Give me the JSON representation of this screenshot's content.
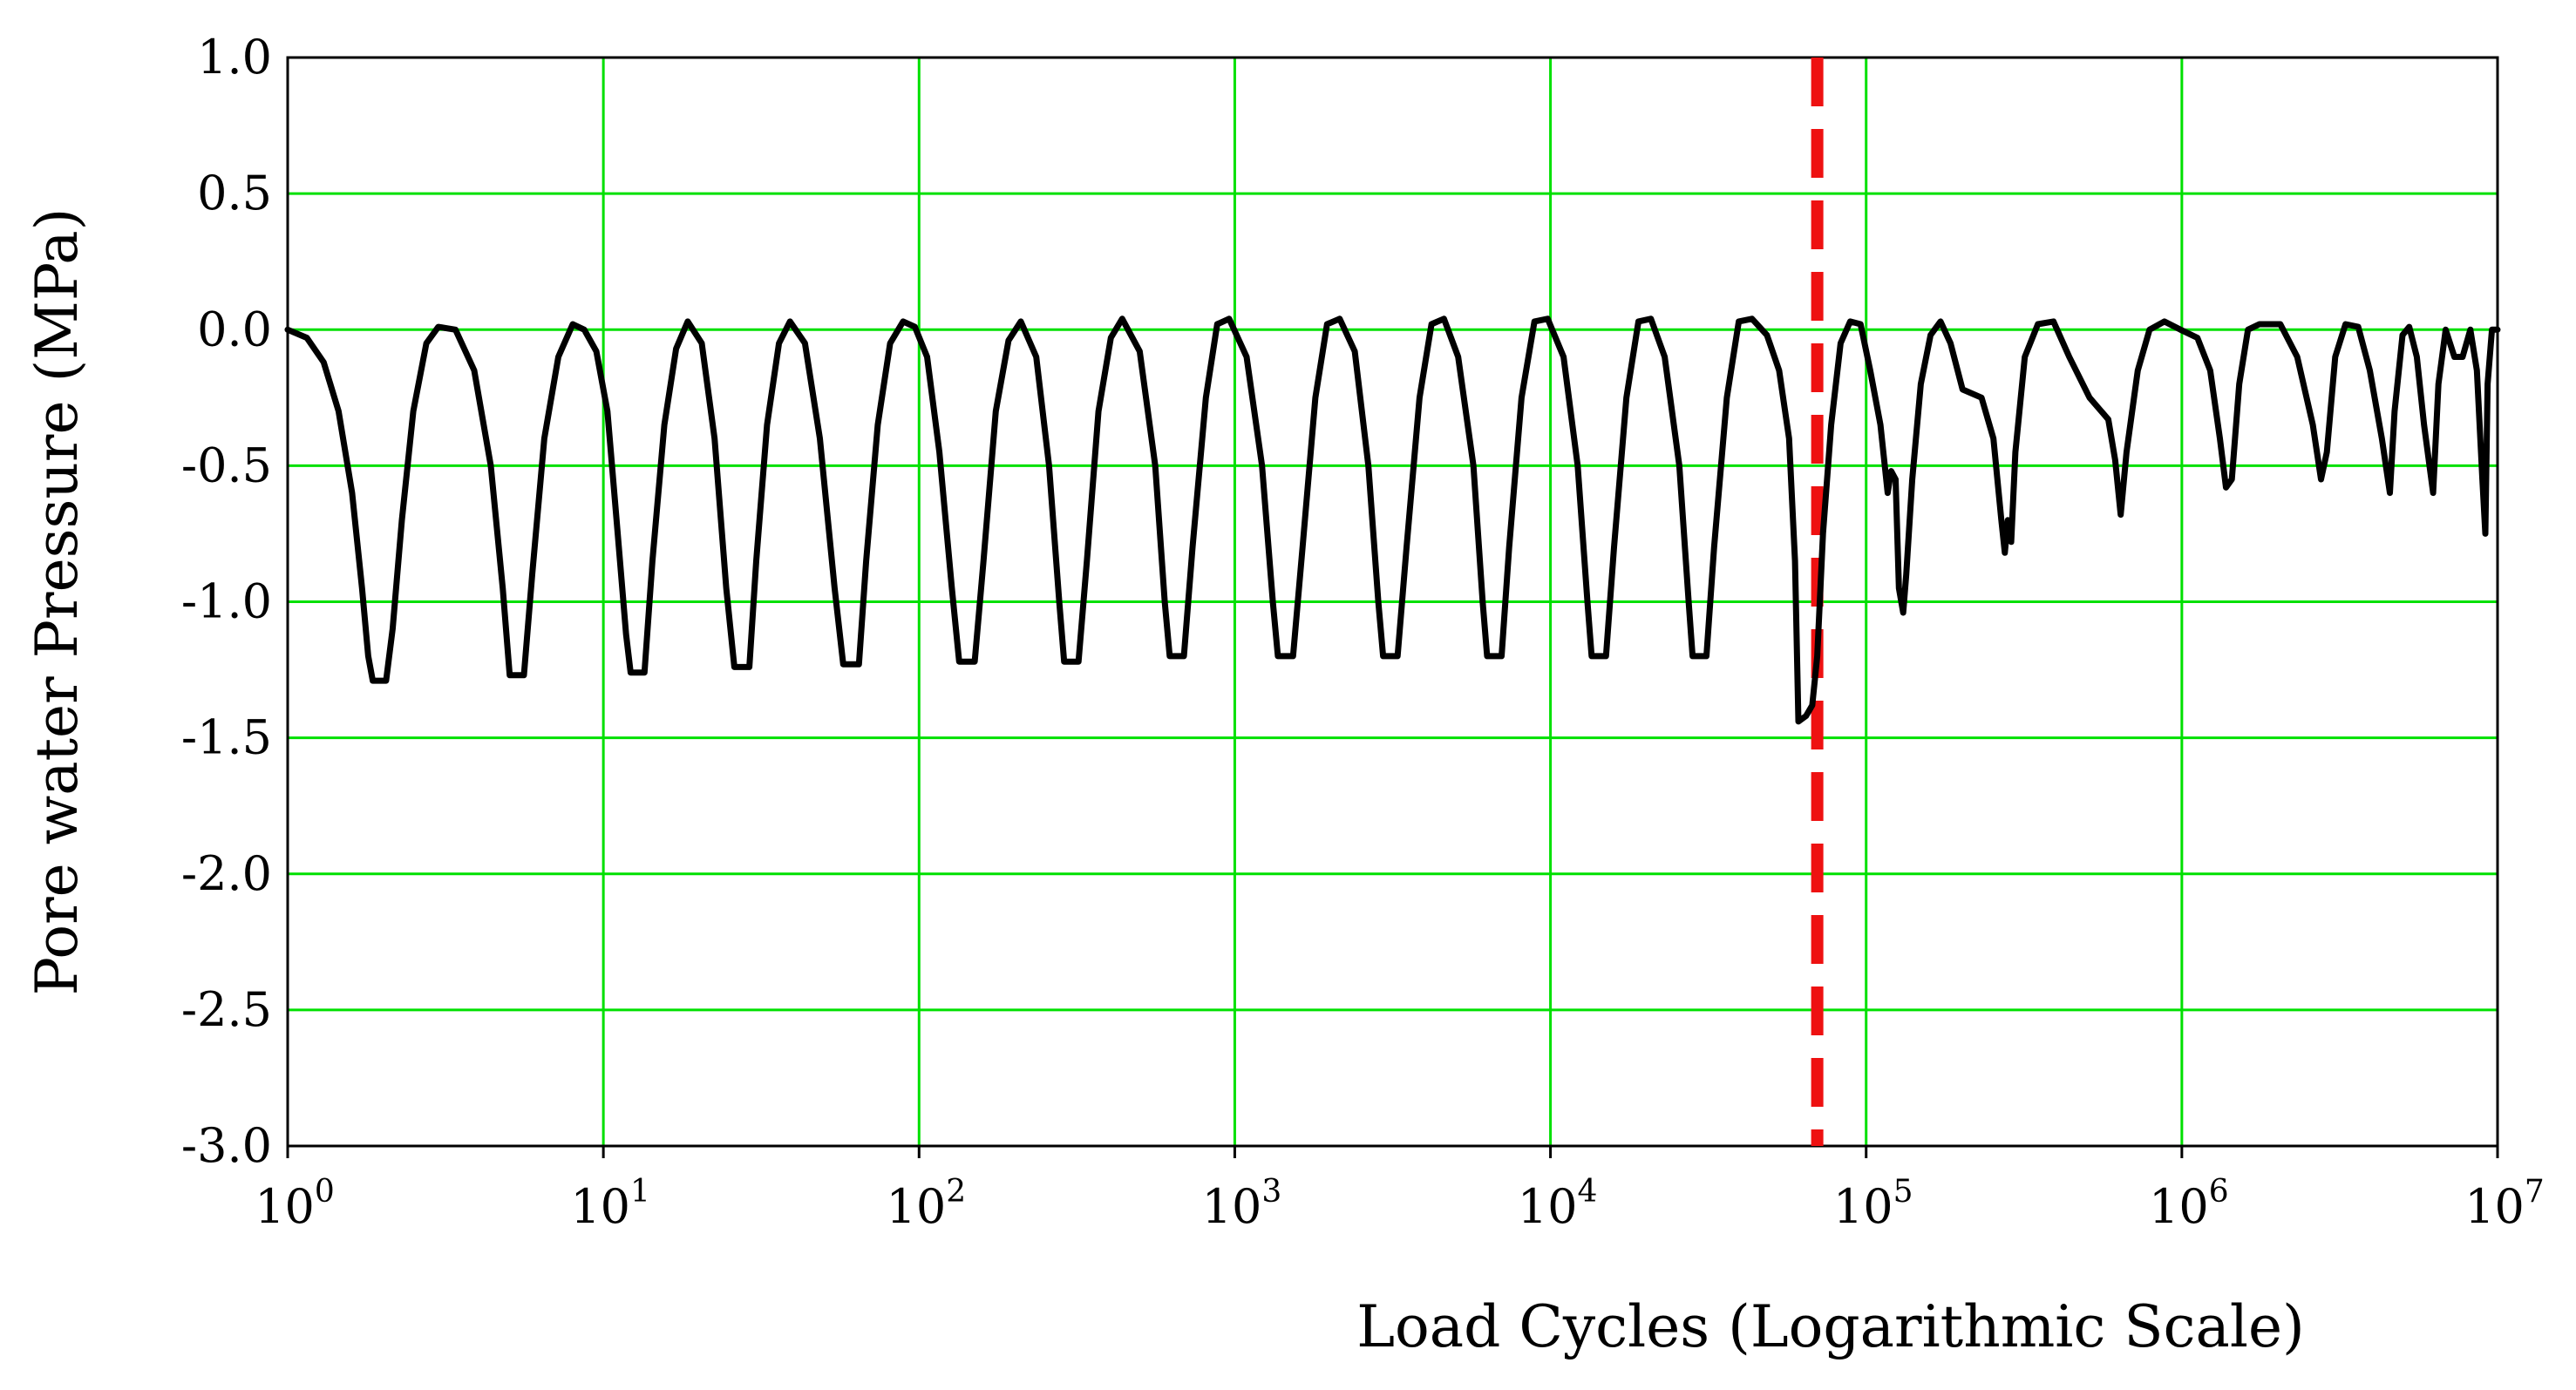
{
  "chart_data": {
    "type": "line",
    "title": "",
    "xlabel": "Load Cycles (Logarithmic Scale)",
    "ylabel": "Pore water Pressure (MPa)",
    "x_scale": "log",
    "xlim": [
      1,
      10000000
    ],
    "ylim": [
      -3.0,
      1.0
    ],
    "grid": true,
    "legend": "none",
    "colors": {
      "grid": "#00e000",
      "series": "#000000",
      "marker_line": "#ee1111"
    },
    "x_ticks": [
      {
        "base": "10",
        "exp": "0",
        "value": 1
      },
      {
        "base": "10",
        "exp": "1",
        "value": 10
      },
      {
        "base": "10",
        "exp": "2",
        "value": 100
      },
      {
        "base": "10",
        "exp": "3",
        "value": 1000
      },
      {
        "base": "10",
        "exp": "4",
        "value": 10000
      },
      {
        "base": "10",
        "exp": "5",
        "value": 100000
      },
      {
        "base": "10",
        "exp": "6",
        "value": 1000000
      },
      {
        "base": "10",
        "exp": "7",
        "value": 10000000
      }
    ],
    "y_ticks": [
      {
        "label": "1.0",
        "value": 1.0
      },
      {
        "label": "0.5",
        "value": 0.5
      },
      {
        "label": "0.0",
        "value": 0.0
      },
      {
        "label": "-0.5",
        "value": -0.5
      },
      {
        "label": "-1.0",
        "value": -1.0
      },
      {
        "label": "-1.5",
        "value": -1.5
      },
      {
        "label": "-2.0",
        "value": -2.0
      },
      {
        "label": "-2.5",
        "value": -2.5
      },
      {
        "label": "-3.0",
        "value": -3.0
      }
    ],
    "vertical_marker": {
      "x": 70000,
      "style": "dashed",
      "color": "#ee1111"
    },
    "series": [
      {
        "color": "#000000",
        "points": [
          [
            1.0,
            0.0
          ],
          [
            1.15,
            -0.03
          ],
          [
            1.3,
            -0.12
          ],
          [
            1.45,
            -0.3
          ],
          [
            1.6,
            -0.6
          ],
          [
            1.72,
            -0.95
          ],
          [
            1.8,
            -1.2
          ],
          [
            1.86,
            -1.29
          ],
          [
            2.05,
            -1.29
          ],
          [
            2.15,
            -1.1
          ],
          [
            2.3,
            -0.7
          ],
          [
            2.5,
            -0.3
          ],
          [
            2.75,
            -0.05
          ],
          [
            3.0,
            0.01
          ],
          [
            3.4,
            0.0
          ],
          [
            3.9,
            -0.15
          ],
          [
            4.4,
            -0.5
          ],
          [
            4.8,
            -0.95
          ],
          [
            5.05,
            -1.27
          ],
          [
            5.6,
            -1.27
          ],
          [
            5.95,
            -0.9
          ],
          [
            6.5,
            -0.4
          ],
          [
            7.2,
            -0.1
          ],
          [
            8.0,
            0.02
          ],
          [
            8.7,
            0.0
          ],
          [
            9.5,
            -0.08
          ],
          [
            10.3,
            -0.3
          ],
          [
            11.1,
            -0.75
          ],
          [
            11.8,
            -1.12
          ],
          [
            12.2,
            -1.26
          ],
          [
            13.5,
            -1.26
          ],
          [
            14.3,
            -0.85
          ],
          [
            15.6,
            -0.35
          ],
          [
            17.0,
            -0.07
          ],
          [
            18.5,
            0.03
          ],
          [
            20.5,
            -0.05
          ],
          [
            22.5,
            -0.4
          ],
          [
            24.5,
            -0.95
          ],
          [
            26.0,
            -1.24
          ],
          [
            29.0,
            -1.24
          ],
          [
            30.5,
            -0.85
          ],
          [
            33.0,
            -0.35
          ],
          [
            36.0,
            -0.05
          ],
          [
            39.0,
            0.03
          ],
          [
            43.5,
            -0.05
          ],
          [
            48.5,
            -0.4
          ],
          [
            54.0,
            -0.95
          ],
          [
            57.5,
            -1.23
          ],
          [
            64.5,
            -1.23
          ],
          [
            68.0,
            -0.85
          ],
          [
            74.0,
            -0.35
          ],
          [
            81.0,
            -0.05
          ],
          [
            89.0,
            0.03
          ],
          [
            97.0,
            0.01
          ],
          [
            106.0,
            -0.1
          ],
          [
            116.0,
            -0.45
          ],
          [
            127.0,
            -0.95
          ],
          [
            134.0,
            -1.22
          ],
          [
            150.0,
            -1.22
          ],
          [
            160.0,
            -0.85
          ],
          [
            175.0,
            -0.3
          ],
          [
            192.0,
            -0.04
          ],
          [
            210.0,
            0.03
          ],
          [
            235.0,
            -0.1
          ],
          [
            258.0,
            -0.5
          ],
          [
            278.0,
            -1.0
          ],
          [
            288.0,
            -1.22
          ],
          [
            320.0,
            -1.22
          ],
          [
            340.0,
            -0.85
          ],
          [
            370.0,
            -0.3
          ],
          [
            405.0,
            -0.03
          ],
          [
            440.0,
            0.04
          ],
          [
            500.0,
            -0.08
          ],
          [
            560.0,
            -0.5
          ],
          [
            600.0,
            -1.0
          ],
          [
            622.0,
            -1.2
          ],
          [
            690.0,
            -1.2
          ],
          [
            735.0,
            -0.8
          ],
          [
            810.0,
            -0.25
          ],
          [
            880.0,
            0.02
          ],
          [
            960.0,
            0.04
          ],
          [
            1090.0,
            -0.1
          ],
          [
            1220.0,
            -0.5
          ],
          [
            1320.0,
            -1.0
          ],
          [
            1370.0,
            -1.2
          ],
          [
            1530.0,
            -1.2
          ],
          [
            1640.0,
            -0.8
          ],
          [
            1800.0,
            -0.25
          ],
          [
            1960.0,
            0.02
          ],
          [
            2150.0,
            0.04
          ],
          [
            2400.0,
            -0.08
          ],
          [
            2650.0,
            -0.5
          ],
          [
            2850.0,
            -1.0
          ],
          [
            2950.0,
            -1.2
          ],
          [
            3280.0,
            -1.2
          ],
          [
            3500.0,
            -0.8
          ],
          [
            3850.0,
            -0.25
          ],
          [
            4200.0,
            0.02
          ],
          [
            4600.0,
            0.04
          ],
          [
            5100.0,
            -0.1
          ],
          [
            5700.0,
            -0.5
          ],
          [
            6100.0,
            -1.0
          ],
          [
            6300.0,
            -1.2
          ],
          [
            7000.0,
            -1.2
          ],
          [
            7400.0,
            -0.8
          ],
          [
            8100.0,
            -0.25
          ],
          [
            8900.0,
            0.03
          ],
          [
            9800.0,
            0.04
          ],
          [
            11000.0,
            -0.1
          ],
          [
            12200.0,
            -0.5
          ],
          [
            13100.0,
            -1.0
          ],
          [
            13500.0,
            -1.2
          ],
          [
            15000.0,
            -1.2
          ],
          [
            15900.0,
            -0.8
          ],
          [
            17400.0,
            -0.25
          ],
          [
            19000.0,
            0.03
          ],
          [
            20800.0,
            0.04
          ],
          [
            23000.0,
            -0.1
          ],
          [
            25600.0,
            -0.5
          ],
          [
            27400.0,
            -1.0
          ],
          [
            28200.0,
            -1.2
          ],
          [
            31200.0,
            -1.2
          ],
          [
            33000.0,
            -0.8
          ],
          [
            36200.0,
            -0.25
          ],
          [
            39500.0,
            0.03
          ],
          [
            43500.0,
            0.04
          ],
          [
            48500.0,
            -0.02
          ],
          [
            53000.0,
            -0.15
          ],
          [
            57000.0,
            -0.4
          ],
          [
            59500.0,
            -0.85
          ],
          [
            61000.0,
            -1.44
          ],
          [
            64500.0,
            -1.42
          ],
          [
            67500.0,
            -1.38
          ],
          [
            70000.0,
            -1.2
          ],
          [
            73000.0,
            -0.75
          ],
          [
            77500.0,
            -0.35
          ],
          [
            83000.0,
            -0.05
          ],
          [
            89000,
            0.03
          ],
          [
            96000,
            0.02
          ],
          [
            103000,
            -0.15
          ],
          [
            111000,
            -0.35
          ],
          [
            117000,
            -0.6
          ],
          [
            120000,
            -0.52
          ],
          [
            124000,
            -0.55
          ],
          [
            127000,
            -0.95
          ],
          [
            131000,
            -1.04
          ],
          [
            134000,
            -0.9
          ],
          [
            140000,
            -0.55
          ],
          [
            149000,
            -0.2
          ],
          [
            160000,
            -0.02
          ],
          [
            172000,
            0.03
          ],
          [
            185000,
            -0.05
          ],
          [
            202000,
            -0.22
          ],
          [
            232000,
            -0.25
          ],
          [
            253000,
            -0.4
          ],
          [
            268000,
            -0.7
          ],
          [
            275000,
            -0.82
          ],
          [
            281000,
            -0.7
          ],
          [
            288000,
            -0.78
          ],
          [
            297000,
            -0.45
          ],
          [
            318000,
            -0.1
          ],
          [
            350000,
            0.02
          ],
          [
            392000,
            0.03
          ],
          [
            440000,
            -0.1
          ],
          [
            510000,
            -0.25
          ],
          [
            585000,
            -0.33
          ],
          [
            615000,
            -0.48
          ],
          [
            640000,
            -0.68
          ],
          [
            668000,
            -0.45
          ],
          [
            725000,
            -0.15
          ],
          [
            790000,
            0.0
          ],
          [
            880000,
            0.03
          ],
          [
            990000,
            0.0
          ],
          [
            1120000,
            -0.03
          ],
          [
            1230000,
            -0.15
          ],
          [
            1320000,
            -0.4
          ],
          [
            1380000,
            -0.58
          ],
          [
            1440000,
            -0.55
          ],
          [
            1520000,
            -0.2
          ],
          [
            1620000,
            0.0
          ],
          [
            1760000,
            0.02
          ],
          [
            2050000,
            0.02
          ],
          [
            2320000,
            -0.1
          ],
          [
            2600000,
            -0.35
          ],
          [
            2760000,
            -0.55
          ],
          [
            2880000,
            -0.45
          ],
          [
            3060000,
            -0.1
          ],
          [
            3300000,
            0.02
          ],
          [
            3620000,
            0.01
          ],
          [
            3940000,
            -0.15
          ],
          [
            4300000,
            -0.4
          ],
          [
            4560000,
            -0.6
          ],
          [
            4720000,
            -0.3
          ],
          [
            5000000,
            -0.02
          ],
          [
            5250000,
            0.01
          ],
          [
            5550000,
            -0.1
          ],
          [
            5850000,
            -0.35
          ],
          [
            6250000,
            -0.6
          ],
          [
            6500000,
            -0.2
          ],
          [
            6850000,
            0.0
          ],
          [
            7300000,
            -0.1
          ],
          [
            7750000,
            -0.1
          ],
          [
            8200000,
            0.0
          ],
          [
            8600000,
            -0.15
          ],
          [
            8950000,
            -0.55
          ],
          [
            9150000,
            -0.75
          ],
          [
            9300000,
            -0.2
          ],
          [
            9600000,
            0.0
          ],
          [
            10000000,
            0.0
          ]
        ]
      }
    ]
  }
}
